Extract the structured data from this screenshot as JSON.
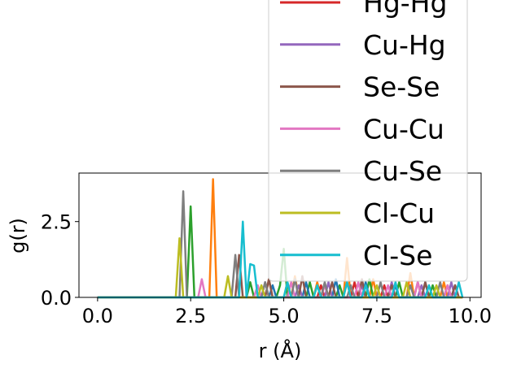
{
  "chart_data": {
    "type": "line",
    "xlabel": "r (Å)",
    "ylabel": "g(r)",
    "xlim": [
      -0.5,
      10.3
    ],
    "ylim": [
      0,
      4.1
    ],
    "xticks": [
      0.0,
      2.5,
      5.0,
      7.5,
      10.0
    ],
    "xtick_labels": [
      "0.0",
      "2.5",
      "5.0",
      "7.5",
      "10.0"
    ],
    "yticks": [
      0.0,
      2.5
    ],
    "ytick_labels": [
      "0.0",
      "2.5"
    ],
    "grid": false,
    "legend_placement": "top-right",
    "series": [
      {
        "name": "",
        "color": "#ff7f0e",
        "x": [
          0,
          2.9,
          3.0,
          3.1,
          3.2,
          3.3,
          4.5,
          4.6,
          4.7,
          5.2,
          5.3,
          5.4,
          5.8,
          5.9,
          6.0,
          6.6,
          6.7,
          6.8,
          7.3,
          7.4,
          7.5,
          8.3,
          8.4,
          8.5,
          9.2,
          9.3,
          9.4,
          9.8
        ],
        "y": [
          0,
          0,
          0,
          3.9,
          0,
          0,
          0,
          0.6,
          0,
          0,
          0.7,
          0,
          0,
          0.5,
          0,
          0,
          1.3,
          0,
          0,
          0.6,
          0,
          0,
          0.8,
          0,
          0,
          0.5,
          0,
          0
        ]
      },
      {
        "name": "",
        "color": "#2ca02c",
        "x": [
          0,
          2.4,
          2.5,
          2.6,
          4.0,
          4.1,
          4.2,
          4.8,
          4.9,
          5.0,
          5.1,
          5.6,
          5.7,
          5.8,
          6.4,
          6.5,
          6.6,
          7.2,
          7.3,
          7.4,
          8.0,
          8.1,
          8.2,
          8.9,
          9.0,
          9.1,
          9.8
        ],
        "y": [
          0,
          0,
          3.0,
          0,
          0,
          0.5,
          0,
          0,
          0.4,
          1.6,
          0,
          0,
          0.5,
          0,
          0,
          0.4,
          0,
          0,
          0.6,
          0,
          0,
          0.5,
          0,
          0,
          0.4,
          0,
          0
        ]
      },
      {
        "name": "",
        "color": "#1f77b4",
        "x": [
          0,
          4.6,
          4.7,
          4.8,
          5.5,
          5.6,
          5.7,
          6.3,
          6.4,
          6.5,
          7.1,
          7.2,
          7.3,
          7.9,
          8.0,
          8.1,
          8.7,
          8.8,
          8.9,
          9.5,
          9.6,
          9.7,
          9.8
        ],
        "y": [
          0,
          0,
          0.4,
          0,
          0,
          0.5,
          0,
          0,
          0.6,
          0,
          0,
          0.5,
          0,
          0,
          0.4,
          0,
          0,
          0.5,
          0,
          0,
          0.4,
          0,
          0
        ]
      },
      {
        "name": "Hg-Hg",
        "color": "#d62728",
        "x": [
          0,
          5.9,
          6.0,
          6.1,
          6.8,
          6.9,
          7.0,
          7.6,
          7.7,
          7.8,
          8.5,
          8.6,
          8.7,
          9.3,
          9.4,
          9.5,
          9.8
        ],
        "y": [
          0,
          0,
          0.4,
          0,
          0,
          0.5,
          0,
          0,
          0.4,
          0,
          0,
          0.5,
          0,
          0,
          0.4,
          0,
          0
        ]
      },
      {
        "name": "Cu-Hg",
        "color": "#9467bd",
        "x": [
          0,
          4.4,
          4.5,
          4.6,
          5.3,
          5.4,
          5.5,
          6.1,
          6.2,
          6.3,
          7.0,
          7.1,
          7.2,
          7.8,
          7.9,
          8.0,
          8.6,
          8.7,
          8.8,
          9.4,
          9.5,
          9.6,
          9.8
        ],
        "y": [
          0,
          0,
          0.5,
          0,
          0,
          0.4,
          0,
          0,
          0.5,
          0,
          0,
          0.4,
          0,
          0,
          0.5,
          0,
          0,
          0.4,
          0,
          0,
          0.5,
          0,
          0
        ]
      },
      {
        "name": "Se-Se",
        "color": "#8c564b",
        "x": [
          0,
          3.7,
          3.8,
          3.9,
          4.5,
          4.6,
          4.7,
          5.4,
          5.5,
          5.6,
          6.2,
          6.3,
          6.4,
          7.0,
          7.1,
          7.2,
          7.8,
          7.9,
          8.0,
          8.7,
          8.8,
          8.9,
          9.5,
          9.6,
          9.7,
          9.8
        ],
        "y": [
          0,
          0,
          1.4,
          0,
          0,
          0.6,
          0,
          0,
          0.7,
          0,
          0,
          0.5,
          0,
          0,
          0.6,
          0,
          0,
          0.4,
          0,
          0,
          0.5,
          0,
          0,
          0.4,
          0,
          0
        ]
      },
      {
        "name": "Cu-Cu",
        "color": "#e377c2",
        "x": [
          0,
          2.7,
          2.8,
          2.9,
          4.2,
          4.3,
          4.4,
          5.1,
          5.2,
          5.3,
          6.0,
          6.1,
          6.2,
          6.9,
          7.0,
          7.1,
          7.7,
          7.8,
          7.9,
          8.5,
          8.6,
          8.7,
          9.3,
          9.4,
          9.5,
          9.8
        ],
        "y": [
          0,
          0,
          0.6,
          0,
          0,
          0.4,
          0,
          0,
          0.5,
          0,
          0,
          0.4,
          0,
          0,
          0.5,
          0,
          0,
          0.4,
          0,
          0,
          0.5,
          0,
          0,
          0.4,
          0,
          0
        ]
      },
      {
        "name": "Cu-Se",
        "color": "#7f7f7f",
        "x": [
          0,
          2.2,
          2.3,
          2.4,
          3.6,
          3.7,
          3.8,
          4.4,
          4.5,
          4.6,
          5.2,
          5.3,
          5.4,
          6.0,
          6.1,
          6.2,
          6.7,
          6.8,
          6.9,
          7.5,
          7.6,
          7.7,
          8.3,
          8.4,
          8.5,
          9.1,
          9.2,
          9.3,
          9.8
        ],
        "y": [
          0,
          0,
          3.5,
          0,
          0,
          1.4,
          0,
          0,
          0.5,
          0,
          0,
          0.6,
          0,
          0,
          0.5,
          0,
          0,
          0.4,
          0,
          0,
          0.5,
          0,
          0,
          0.4,
          0,
          0,
          0.5,
          0,
          0
        ]
      },
      {
        "name": "Cl-Cu",
        "color": "#bcbd22",
        "x": [
          0,
          2.1,
          2.2,
          2.3,
          3.4,
          3.5,
          3.6,
          4.3,
          4.4,
          4.5,
          5.0,
          5.1,
          5.2,
          5.8,
          5.9,
          6.0,
          6.6,
          6.7,
          6.8,
          7.4,
          7.5,
          7.6,
          8.2,
          8.3,
          8.4,
          9.0,
          9.1,
          9.2,
          9.8
        ],
        "y": [
          0,
          0,
          1.95,
          0,
          0,
          0.7,
          0,
          0,
          0.4,
          0,
          0,
          0.5,
          0,
          0,
          0.4,
          0,
          0,
          0.5,
          0,
          0,
          0.4,
          0,
          0,
          0.5,
          0,
          0,
          0.4,
          0,
          0
        ]
      },
      {
        "name": "Cl-Se",
        "color": "#17becf",
        "x": [
          0,
          3.8,
          3.9,
          4.0,
          4.1,
          4.2,
          4.3,
          4.4,
          5.0,
          5.1,
          5.2,
          5.8,
          5.9,
          6.0,
          6.6,
          6.7,
          6.8,
          7.1,
          7.2,
          7.3,
          7.9,
          8.0,
          8.1,
          8.8,
          8.9,
          9.0,
          9.6,
          9.7,
          9.8
        ],
        "y": [
          0,
          0,
          2.5,
          0,
          1.1,
          1.05,
          0,
          0,
          0,
          0.5,
          0,
          0,
          0.4,
          0,
          0,
          0.5,
          0,
          0,
          0.4,
          0,
          0,
          0.5,
          0,
          0,
          0.4,
          0,
          0,
          0.5,
          0
        ]
      }
    ]
  }
}
